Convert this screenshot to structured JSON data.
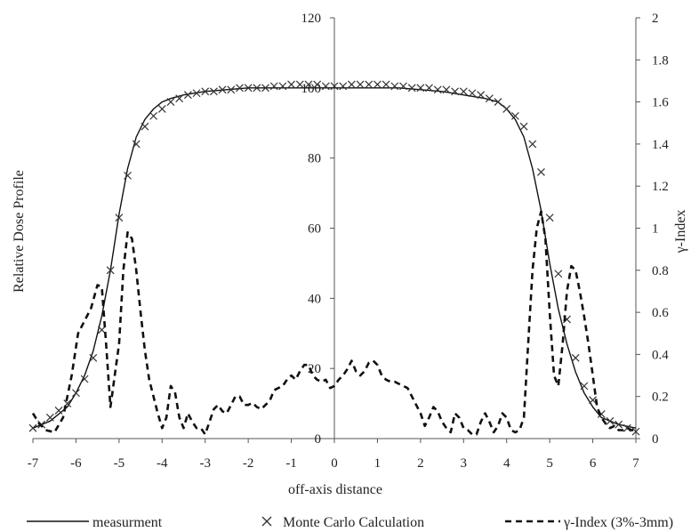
{
  "chart_data": {
    "type": "line",
    "title": "",
    "xlabel": "off-axis  distance",
    "ylabel_left": "Relative  Dose Profile",
    "ylabel_right": "γ-Index",
    "xlim": [
      -7,
      7
    ],
    "ylim_left": [
      0,
      120
    ],
    "ylim_right": [
      0,
      2
    ],
    "x_ticks": [
      "-7",
      "-6",
      "-5",
      "-4",
      "-3",
      "-2",
      "-1",
      "0",
      "1",
      "2",
      "3",
      "4",
      "5",
      "6",
      "7"
    ],
    "y_left_ticks": [
      "0",
      "20",
      "40",
      "60",
      "80",
      "100",
      "120"
    ],
    "y_right_ticks": [
      "0",
      "0.2",
      "0.4",
      "0.6",
      "0.8",
      "1",
      "1.2",
      "1.4",
      "1.6",
      "1.8",
      "2"
    ],
    "grid": false,
    "legend_position": "bottom",
    "series": [
      {
        "name": "measurment",
        "axis": "left",
        "style": "solid-line",
        "x": [
          -7,
          -6.6,
          -6.2,
          -6.0,
          -5.8,
          -5.6,
          -5.4,
          -5.2,
          -5.0,
          -4.8,
          -4.6,
          -4.4,
          -4.2,
          -4.0,
          -3.8,
          -3.5,
          -3.0,
          -2.5,
          -2.0,
          -1.5,
          -1.0,
          -0.5,
          0,
          0.5,
          1.0,
          1.5,
          2.0,
          2.5,
          3.0,
          3.5,
          3.8,
          4.0,
          4.2,
          4.4,
          4.6,
          4.8,
          5.0,
          5.2,
          5.4,
          5.6,
          5.8,
          6.0,
          6.2,
          6.6,
          7
        ],
        "y": [
          3,
          5,
          9,
          13,
          18,
          25,
          35,
          48,
          64,
          77,
          86,
          91,
          94,
          96,
          97,
          98,
          99,
          99.5,
          100,
          100,
          100,
          100,
          100,
          100,
          100,
          100,
          99.5,
          99,
          98,
          97,
          96,
          94,
          91,
          86,
          77,
          65,
          50,
          37,
          27,
          19,
          13,
          9,
          6,
          4,
          3
        ]
      },
      {
        "name": "Monte Carlo Calculation",
        "axis": "left",
        "style": "x-marker",
        "x": [
          -7.0,
          -6.8,
          -6.6,
          -6.4,
          -6.2,
          -6.0,
          -5.8,
          -5.6,
          -5.4,
          -5.2,
          -5.0,
          -4.8,
          -4.6,
          -4.4,
          -4.2,
          -4.0,
          -3.8,
          -3.6,
          -3.4,
          -3.2,
          -3.0,
          -2.8,
          -2.6,
          -2.4,
          -2.2,
          -2.0,
          -1.8,
          -1.6,
          -1.4,
          -1.2,
          -1.0,
          -0.8,
          -0.6,
          -0.4,
          -0.2,
          0.0,
          0.2,
          0.4,
          0.6,
          0.8,
          1.0,
          1.2,
          1.4,
          1.6,
          1.8,
          2.0,
          2.2,
          2.4,
          2.6,
          2.8,
          3.0,
          3.2,
          3.4,
          3.6,
          3.8,
          4.0,
          4.2,
          4.4,
          4.6,
          4.8,
          5.0,
          5.2,
          5.4,
          5.6,
          5.8,
          6.0,
          6.2,
          6.4,
          6.6,
          6.8,
          7.0
        ],
        "y": [
          3,
          4,
          6,
          8,
          10,
          13,
          17,
          23,
          31,
          48,
          63,
          75,
          84,
          89,
          92,
          94,
          96,
          97,
          98,
          98.5,
          99,
          99,
          99.5,
          99.5,
          100,
          100,
          100,
          100,
          100.5,
          100.5,
          101,
          101,
          101,
          101,
          100.5,
          100.5,
          100.5,
          101,
          101,
          101,
          101,
          101,
          100.5,
          100.5,
          100,
          100,
          100,
          99.5,
          99.5,
          99,
          99,
          98.5,
          98,
          97,
          96,
          94,
          92,
          89,
          84,
          76,
          63,
          47,
          34,
          23,
          15,
          11,
          7,
          5,
          4,
          3,
          2
        ]
      },
      {
        "name": "γ-Index (3%-3mm)",
        "axis": "right",
        "style": "dashed-line",
        "x": [
          -7.0,
          -6.85,
          -6.7,
          -6.5,
          -6.3,
          -6.1,
          -5.95,
          -5.8,
          -5.65,
          -5.5,
          -5.4,
          -5.3,
          -5.2,
          -5.1,
          -5.0,
          -4.9,
          -4.8,
          -4.7,
          -4.6,
          -4.5,
          -4.4,
          -4.3,
          -4.2,
          -4.1,
          -4.0,
          -3.9,
          -3.8,
          -3.7,
          -3.6,
          -3.5,
          -3.4,
          -3.3,
          -3.2,
          -3.1,
          -3.0,
          -2.9,
          -2.8,
          -2.7,
          -2.6,
          -2.5,
          -2.4,
          -2.3,
          -2.2,
          -2.1,
          -2.0,
          -1.9,
          -1.8,
          -1.7,
          -1.6,
          -1.5,
          -1.4,
          -1.3,
          -1.2,
          -1.1,
          -1.0,
          -0.9,
          -0.8,
          -0.7,
          -0.6,
          -0.5,
          -0.4,
          -0.3,
          -0.2,
          -0.1,
          0.0,
          0.1,
          0.2,
          0.3,
          0.4,
          0.5,
          0.6,
          0.7,
          0.8,
          0.9,
          1.0,
          1.1,
          1.2,
          1.3,
          1.4,
          1.5,
          1.6,
          1.7,
          1.8,
          1.9,
          2.0,
          2.1,
          2.2,
          2.3,
          2.4,
          2.5,
          2.6,
          2.7,
          2.8,
          2.9,
          3.0,
          3.1,
          3.2,
          3.3,
          3.4,
          3.5,
          3.6,
          3.7,
          3.8,
          3.9,
          4.0,
          4.1,
          4.2,
          4.3,
          4.4,
          4.5,
          4.6,
          4.7,
          4.8,
          4.9,
          5.0,
          5.1,
          5.2,
          5.3,
          5.4,
          5.5,
          5.6,
          5.7,
          5.8,
          5.9,
          6.0,
          6.1,
          6.2,
          6.3,
          6.4,
          6.5,
          6.6,
          6.7,
          6.8,
          6.9,
          7.0
        ],
        "y": [
          0.12,
          0.07,
          0.04,
          0.03,
          0.1,
          0.3,
          0.5,
          0.56,
          0.62,
          0.73,
          0.72,
          0.45,
          0.15,
          0.3,
          0.45,
          0.8,
          0.98,
          0.95,
          0.8,
          0.6,
          0.42,
          0.28,
          0.2,
          0.12,
          0.05,
          0.1,
          0.25,
          0.22,
          0.1,
          0.05,
          0.12,
          0.08,
          0.05,
          0.05,
          0.02,
          0.08,
          0.14,
          0.16,
          0.13,
          0.12,
          0.16,
          0.2,
          0.2,
          0.16,
          0.16,
          0.17,
          0.15,
          0.14,
          0.16,
          0.18,
          0.23,
          0.24,
          0.25,
          0.28,
          0.3,
          0.28,
          0.32,
          0.35,
          0.35,
          0.3,
          0.28,
          0.27,
          0.28,
          0.24,
          0.25,
          0.28,
          0.3,
          0.33,
          0.37,
          0.32,
          0.3,
          0.32,
          0.36,
          0.37,
          0.35,
          0.3,
          0.28,
          0.27,
          0.27,
          0.26,
          0.25,
          0.24,
          0.2,
          0.16,
          0.12,
          0.06,
          0.1,
          0.15,
          0.13,
          0.08,
          0.05,
          0.03,
          0.12,
          0.1,
          0.05,
          0.04,
          0.02,
          0.02,
          0.08,
          0.12,
          0.08,
          0.03,
          0.06,
          0.12,
          0.1,
          0.04,
          0.03,
          0.04,
          0.1,
          0.45,
          0.8,
          1.0,
          1.08,
          0.95,
          0.6,
          0.3,
          0.25,
          0.45,
          0.7,
          0.82,
          0.8,
          0.7,
          0.58,
          0.45,
          0.3,
          0.15,
          0.1,
          0.07,
          0.05,
          0.06,
          0.04,
          0.04,
          0.05,
          0.04,
          0.04
        ]
      }
    ]
  }
}
